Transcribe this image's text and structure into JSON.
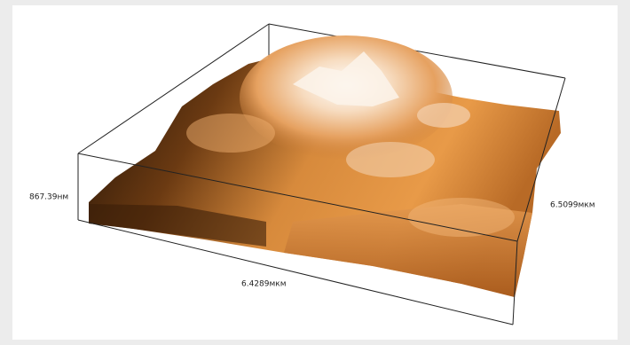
{
  "labels": {
    "height": "867.39нм",
    "depth": "6.5099мкм",
    "width": "6.4289мкм"
  }
}
